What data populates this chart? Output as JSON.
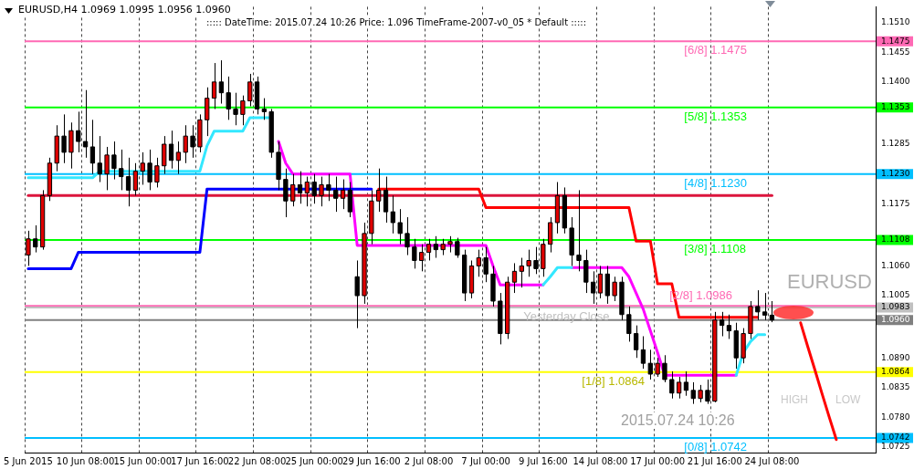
{
  "chart_data": {
    "type": "candlestick",
    "title": "EURUSD,H4  1.0969 1.0995 1.0956 1.0960",
    "subtitle": "::::: DateTime: 2015.07.24 10:26    Price: 1.096    TimeFrame-2007-v0_05    *  Default :::::",
    "categories": [
      "5 Jun 2015",
      null,
      null,
      null,
      null,
      null,
      null,
      null,
      "10 Jun 08:00",
      null,
      null,
      null,
      null,
      null,
      null,
      null,
      "15 Jun 00:00",
      null,
      null,
      null,
      null,
      null,
      null,
      null,
      "17 Jun 16:00",
      null,
      null,
      null,
      null,
      null,
      null,
      null,
      "22 Jun 08:00",
      null,
      null,
      null,
      null,
      null,
      null,
      null,
      "25 Jun 00:00",
      null,
      null,
      null,
      null,
      null,
      null,
      null,
      "29 Jun 16:00",
      null,
      null,
      null,
      null,
      null,
      null,
      null,
      "2 Jul 08:00",
      null,
      null,
      null,
      null,
      null,
      null,
      null,
      "7 Jul 00:00",
      null,
      null,
      null,
      null,
      null,
      null,
      null,
      "9 Jul 16:00",
      null,
      null,
      null,
      null,
      null,
      null,
      null,
      "14 Jul 08:00",
      null,
      null,
      null,
      null,
      null,
      null,
      null,
      "17 Jul 00:00",
      null,
      null,
      null,
      null,
      null,
      null,
      null,
      "21 Jul 16:00",
      null,
      null,
      null,
      null,
      null,
      null,
      null,
      "24 Jul 08:00",
      null,
      null,
      null,
      null,
      null,
      null,
      null,
      null,
      null,
      null,
      null,
      null,
      null,
      null
    ],
    "ohlc": [
      [
        1.108,
        1.1125,
        1.106,
        1.111
      ],
      [
        1.111,
        1.1135,
        1.1085,
        1.1095
      ],
      [
        1.1095,
        1.12,
        1.109,
        1.119
      ],
      [
        1.119,
        1.126,
        1.118,
        1.125
      ],
      [
        1.125,
        1.132,
        1.1235,
        1.13
      ],
      [
        1.13,
        1.134,
        1.125,
        1.127
      ],
      [
        1.127,
        1.1325,
        1.124,
        1.131
      ],
      [
        1.131,
        1.1345,
        1.127,
        1.129
      ],
      [
        1.129,
        1.1385,
        1.126,
        1.128
      ],
      [
        1.128,
        1.133,
        1.123,
        1.125
      ],
      [
        1.125,
        1.13,
        1.1215,
        1.123
      ],
      [
        1.123,
        1.128,
        1.12,
        1.1265
      ],
      [
        1.1265,
        1.129,
        1.122,
        1.124
      ],
      [
        1.124,
        1.1275,
        1.12,
        1.1225
      ],
      [
        1.1225,
        1.126,
        1.117,
        1.12
      ],
      [
        1.12,
        1.125,
        1.119,
        1.1235
      ],
      [
        1.1235,
        1.127,
        1.121,
        1.125
      ],
      [
        1.125,
        1.1275,
        1.12,
        1.1215
      ],
      [
        1.1215,
        1.126,
        1.1205,
        1.1245
      ],
      [
        1.1245,
        1.13,
        1.123,
        1.1285
      ],
      [
        1.1285,
        1.131,
        1.124,
        1.1255
      ],
      [
        1.1255,
        1.129,
        1.123,
        1.127
      ],
      [
        1.127,
        1.132,
        1.125,
        1.13
      ],
      [
        1.13,
        1.132,
        1.126,
        1.128
      ],
      [
        1.128,
        1.134,
        1.127,
        1.133
      ],
      [
        1.133,
        1.139,
        1.13,
        1.137
      ],
      [
        1.137,
        1.1435,
        1.135,
        1.14
      ],
      [
        1.14,
        1.144,
        1.136,
        1.138
      ],
      [
        1.138,
        1.141,
        1.133,
        1.135
      ],
      [
        1.135,
        1.138,
        1.132,
        1.134
      ],
      [
        1.134,
        1.1375,
        1.132,
        1.1365
      ],
      [
        1.1365,
        1.1415,
        1.1355,
        1.14
      ],
      [
        1.14,
        1.141,
        1.134,
        1.135
      ],
      [
        1.135,
        1.137,
        1.133,
        1.1345
      ],
      [
        1.1345,
        1.135,
        1.126,
        1.127
      ],
      [
        1.127,
        1.129,
        1.12,
        1.122
      ],
      [
        1.122,
        1.124,
        1.115,
        1.118
      ],
      [
        1.118,
        1.123,
        1.117,
        1.121
      ],
      [
        1.121,
        1.1235,
        1.1175,
        1.1195
      ],
      [
        1.1195,
        1.1225,
        1.117,
        1.1215
      ],
      [
        1.1215,
        1.123,
        1.1175,
        1.119
      ],
      [
        1.119,
        1.1225,
        1.117,
        1.121
      ],
      [
        1.121,
        1.123,
        1.118,
        1.12
      ],
      [
        1.12,
        1.1225,
        1.116,
        1.1185
      ],
      [
        1.1185,
        1.122,
        1.1165,
        1.12
      ],
      [
        1.12,
        1.1215,
        1.115,
        1.116
      ],
      [
        1.104,
        1.107,
        1.0945,
        1.1005
      ],
      [
        1.1005,
        1.114,
        1.099,
        1.112
      ],
      [
        1.112,
        1.12,
        1.11,
        1.118
      ],
      [
        1.118,
        1.124,
        1.116,
        1.12
      ],
      [
        1.12,
        1.1225,
        1.114,
        1.116
      ],
      [
        1.116,
        1.119,
        1.112,
        1.114
      ],
      [
        1.114,
        1.1165,
        1.11,
        1.112
      ],
      [
        1.112,
        1.115,
        1.108,
        1.1095
      ],
      [
        1.1095,
        1.111,
        1.1055,
        1.107
      ],
      [
        1.107,
        1.11,
        1.105,
        1.1085
      ],
      [
        1.1085,
        1.111,
        1.107,
        1.11
      ],
      [
        1.11,
        1.1115,
        1.1075,
        1.109
      ],
      [
        1.109,
        1.111,
        1.108,
        1.11
      ],
      [
        1.11,
        1.1115,
        1.1085,
        1.1105
      ],
      [
        1.1105,
        1.1112,
        1.1075,
        1.108
      ],
      [
        1.108,
        1.109,
        1.0995,
        1.101
      ],
      [
        1.101,
        1.107,
        1.1,
        1.106
      ],
      [
        1.106,
        1.109,
        1.104,
        1.1075
      ],
      [
        1.1075,
        1.1095,
        1.103,
        1.1045
      ],
      [
        1.1045,
        1.106,
        1.0985,
        1.0995
      ],
      [
        1.0995,
        1.101,
        1.0915,
        1.0935
      ],
      [
        1.0935,
        1.104,
        1.0925,
        1.103
      ],
      [
        1.103,
        1.1065,
        1.101,
        1.105
      ],
      [
        1.105,
        1.1075,
        1.102,
        1.106
      ],
      [
        1.106,
        1.109,
        1.104,
        1.107
      ],
      [
        1.107,
        1.1095,
        1.1045,
        1.1055
      ],
      [
        1.1055,
        1.111,
        1.104,
        1.11
      ],
      [
        1.11,
        1.115,
        1.1085,
        1.114
      ],
      [
        1.114,
        1.1215,
        1.112,
        1.119
      ],
      [
        1.119,
        1.1205,
        1.112,
        1.113
      ],
      [
        1.113,
        1.115,
        1.106,
        1.108
      ],
      [
        1.108,
        1.12,
        1.105,
        1.107
      ],
      [
        1.107,
        1.109,
        1.101,
        1.103
      ],
      [
        1.103,
        1.105,
        1.099,
        1.101
      ],
      [
        1.101,
        1.106,
        1.1,
        1.1045
      ],
      [
        1.1045,
        1.106,
        1.099,
        1.1005
      ],
      [
        1.1005,
        1.104,
        1.0995,
        1.103
      ],
      [
        1.103,
        1.104,
        1.096,
        1.097
      ],
      [
        1.097,
        1.0985,
        1.092,
        1.0935
      ],
      [
        1.0935,
        1.095,
        1.089,
        1.0905
      ],
      [
        1.0905,
        1.093,
        1.087,
        1.088
      ],
      [
        1.088,
        1.0905,
        1.085,
        1.086
      ],
      [
        1.086,
        1.089,
        1.0855,
        1.088
      ],
      [
        1.088,
        1.0895,
        1.0845,
        1.085
      ],
      [
        1.085,
        1.0865,
        1.0815,
        1.0825
      ],
      [
        1.0825,
        1.0855,
        1.0815,
        1.0845
      ],
      [
        1.0845,
        1.0865,
        1.082,
        1.083
      ],
      [
        1.083,
        1.0845,
        1.0805,
        1.0815
      ],
      [
        1.0815,
        1.084,
        1.0808,
        1.083
      ],
      [
        1.083,
        1.085,
        1.0805,
        1.081
      ],
      [
        1.081,
        1.0975,
        1.0808,
        1.096
      ],
      [
        1.096,
        1.0975,
        1.093,
        1.095
      ],
      [
        1.095,
        1.097,
        1.0925,
        1.094
      ],
      [
        1.094,
        1.0955,
        1.087,
        1.089
      ],
      [
        1.089,
        1.0945,
        1.088,
        1.0935
      ],
      [
        1.0935,
        1.0995,
        1.0925,
        1.0985
      ],
      [
        1.0985,
        1.1015,
        1.096,
        1.0975
      ],
      [
        1.0975,
        1.101,
        1.096,
        1.0969
      ],
      [
        1.0969,
        1.0995,
        1.0956,
        1.096
      ],
      null,
      null,
      null,
      null,
      null,
      null,
      null,
      null,
      null,
      null,
      null,
      null,
      null,
      null
    ],
    "series": [
      {
        "type": "line",
        "color": "#0000ff",
        "values": [
          1.1055,
          1.1055,
          1.1055,
          1.1055,
          1.1055,
          1.1055,
          1.1055,
          1.1085,
          1.1085,
          1.1085,
          1.1085,
          1.1085,
          1.1085,
          1.1085,
          1.1085,
          1.1085,
          1.1085,
          1.1085,
          1.1085,
          1.1085,
          1.1085,
          1.1085,
          1.1085,
          1.1085,
          1.1085,
          1.1202,
          1.1202,
          1.1202,
          1.1202,
          1.1202,
          1.1202,
          1.1202,
          1.1202,
          1.1202,
          1.1202,
          1.1202,
          1.1202,
          1.1202,
          1.1202,
          1.1202,
          1.1202,
          1.1202,
          1.1202,
          1.1202,
          1.1202,
          1.1202,
          1.1202,
          1.1202,
          1.1202,
          null,
          null,
          null,
          null,
          null,
          null,
          null,
          null,
          null,
          null,
          null,
          null,
          null,
          null,
          null,
          null,
          null,
          null,
          null,
          null,
          null,
          null,
          null,
          null,
          null,
          null,
          null,
          null,
          null,
          null,
          null,
          null,
          null,
          null,
          null,
          null,
          null,
          null,
          null,
          null,
          null,
          null,
          null,
          null,
          null,
          null,
          null,
          null,
          null,
          null,
          null,
          null,
          null,
          null,
          null,
          null,
          null,
          null,
          null,
          null,
          null,
          null,
          null,
          null,
          null,
          null,
          null,
          null,
          null,
          null
        ]
      },
      {
        "type": "line",
        "color": "#ff0000",
        "values": [
          null,
          null,
          null,
          null,
          null,
          null,
          null,
          null,
          null,
          null,
          null,
          null,
          null,
          null,
          null,
          null,
          null,
          null,
          null,
          null,
          null,
          null,
          null,
          null,
          null,
          null,
          null,
          null,
          null,
          null,
          null,
          null,
          null,
          null,
          null,
          null,
          null,
          null,
          null,
          null,
          null,
          null,
          null,
          null,
          null,
          null,
          null,
          null,
          null,
          1.1202,
          1.1202,
          1.1202,
          1.1202,
          1.1202,
          1.1202,
          1.1202,
          1.1202,
          1.1202,
          1.1202,
          1.1202,
          1.1202,
          1.1202,
          1.1202,
          1.1202,
          1.1168,
          1.1168,
          1.1168,
          1.1168,
          1.1168,
          1.1168,
          1.1168,
          1.1168,
          1.1168,
          1.1168,
          1.1168,
          1.1168,
          1.1168,
          1.1168,
          1.1168,
          1.1168,
          1.1168,
          1.1168,
          1.1168,
          1.1168,
          1.1168,
          1.1106,
          1.1106,
          1.1106,
          1.1027,
          1.1027,
          1.1027,
          1.0965,
          1.0965,
          1.0965,
          1.0965,
          1.0965,
          1.0965,
          1.0965,
          1.0965,
          1.0965,
          1.0965,
          1.0965,
          1.0965,
          null,
          null,
          null,
          null,
          null,
          null,
          null,
          null,
          null,
          null,
          null,
          null,
          null,
          null,
          null,
          null
        ]
      },
      {
        "type": "line",
        "color": "#dc143c",
        "values": [
          1.119,
          1.119,
          1.119,
          1.119,
          1.119,
          1.119,
          1.119,
          1.119,
          1.119,
          1.119,
          1.119,
          1.119,
          1.119,
          1.119,
          1.119,
          1.119,
          1.119,
          1.119,
          1.119,
          1.119,
          1.119,
          1.119,
          1.119,
          1.119,
          1.119,
          1.119,
          1.119,
          1.119,
          1.119,
          1.119,
          1.119,
          1.119,
          1.119,
          1.119,
          1.119,
          1.119,
          1.119,
          1.119,
          1.119,
          1.119,
          1.119,
          1.119,
          1.119,
          1.119,
          1.119,
          1.119,
          1.119,
          1.119,
          1.119,
          1.119,
          1.119,
          1.119,
          1.119,
          1.119,
          1.119,
          1.119,
          1.119,
          1.119,
          1.119,
          1.119,
          1.119,
          1.119,
          1.119,
          1.119,
          1.119,
          1.119,
          1.119,
          1.119,
          1.119,
          1.119,
          1.119,
          1.119,
          1.119,
          1.119,
          1.119,
          1.119,
          1.119,
          1.119,
          1.119,
          1.119,
          1.119,
          1.119,
          1.119,
          1.119,
          1.119,
          1.119,
          1.119,
          1.119,
          1.119,
          1.119,
          1.119,
          1.119,
          1.119,
          1.119,
          1.119,
          1.119,
          1.119,
          1.119,
          1.119,
          1.119,
          1.119,
          1.119,
          1.119,
          1.119,
          1.119,
          null,
          null,
          null,
          null,
          null,
          null,
          null,
          null,
          null,
          null,
          null,
          null,
          null,
          null
        ]
      },
      {
        "type": "line",
        "color": "#33e8ff",
        "values": [
          1.1223,
          1.1223,
          1.1223,
          1.1223,
          1.1223,
          1.1223,
          1.1223,
          1.1223,
          1.1223,
          1.1223,
          1.1235,
          1.1235,
          1.1235,
          1.1235,
          1.1235,
          1.1235,
          1.1235,
          1.1235,
          1.1235,
          1.1235,
          1.1235,
          1.1235,
          1.1235,
          1.1235,
          1.1235,
          1.1282,
          1.1309,
          1.1309,
          1.1309,
          1.1309,
          1.1309,
          1.1334,
          1.1334,
          1.1334,
          1.1334,
          null,
          null,
          null,
          null,
          null,
          null,
          null,
          null,
          null,
          null,
          null,
          null,
          null,
          null,
          null,
          null,
          null,
          null,
          null,
          null,
          null,
          null,
          null,
          null,
          null,
          null,
          null,
          null,
          null,
          null,
          null,
          null,
          null,
          null,
          null,
          null,
          null,
          1.1025,
          1.104,
          1.1057,
          1.1057,
          1.1057,
          null,
          null,
          null,
          null,
          null,
          null,
          null,
          null,
          null,
          null,
          null,
          null,
          null,
          null,
          null,
          null,
          null,
          null,
          null,
          null,
          null,
          null,
          1.0858,
          1.09,
          1.092,
          1.0933,
          1.0933,
          null,
          null,
          null,
          null,
          null,
          null,
          null,
          null,
          null,
          null,
          null,
          null,
          null,
          null,
          null
        ]
      },
      {
        "type": "line",
        "color": "#ff00ff",
        "values": [
          null,
          null,
          null,
          null,
          null,
          null,
          null,
          null,
          null,
          null,
          null,
          null,
          null,
          null,
          null,
          null,
          null,
          null,
          null,
          null,
          null,
          null,
          null,
          null,
          null,
          null,
          null,
          null,
          null,
          null,
          null,
          null,
          null,
          null,
          null,
          1.129,
          1.125,
          1.123,
          1.123,
          1.123,
          1.123,
          1.123,
          1.123,
          1.123,
          1.123,
          1.123,
          1.1098,
          1.1098,
          1.1098,
          1.1098,
          1.1098,
          1.1098,
          1.1098,
          1.1098,
          1.1098,
          1.1098,
          1.1098,
          1.1098,
          1.1098,
          1.1098,
          1.1098,
          1.1098,
          1.1098,
          1.1098,
          1.1098,
          1.106,
          1.1025,
          1.1025,
          1.1025,
          1.1025,
          1.1025,
          1.1025,
          1.1025,
          null,
          null,
          null,
          1.1057,
          1.1057,
          1.1057,
          1.1057,
          1.1057,
          1.1057,
          1.1057,
          1.1057,
          1.104,
          1.101,
          1.098,
          1.094,
          1.09,
          1.0858,
          1.0858,
          1.0858,
          1.0858,
          1.0858,
          1.0858,
          1.0858,
          1.0858,
          1.0858,
          1.0858,
          1.0858,
          null,
          null,
          null,
          null,
          null,
          null,
          null,
          null,
          null,
          null,
          null,
          null,
          null,
          null,
          null,
          null,
          null,
          null,
          null
        ]
      },
      {
        "type": "line",
        "color": "#ff0000",
        "values": [
          null,
          null,
          null,
          null,
          null,
          null,
          null,
          null,
          null,
          null,
          null,
          null,
          null,
          null,
          null,
          null,
          null,
          null,
          null,
          null,
          null,
          null,
          null,
          null,
          null,
          null,
          null,
          null,
          null,
          null,
          null,
          null,
          null,
          null,
          null,
          null,
          null,
          null,
          null,
          null,
          null,
          null,
          null,
          null,
          null,
          null,
          null,
          null,
          null,
          null,
          null,
          null,
          null,
          null,
          null,
          null,
          null,
          null,
          null,
          null,
          null,
          null,
          null,
          null,
          null,
          null,
          null,
          null,
          null,
          null,
          null,
          null,
          null,
          null,
          null,
          null,
          null,
          null,
          null,
          null,
          null,
          null,
          null,
          null,
          null,
          null,
          null,
          null,
          null,
          null,
          null,
          null,
          null,
          null,
          null,
          null,
          null,
          null,
          null,
          null,
          null,
          null,
          null,
          null,
          null,
          null,
          null,
          null,
          1.0955,
          1.0911,
          1.0868,
          1.0824,
          1.0781,
          1.0739,
          null,
          null,
          null,
          null,
          null
        ]
      }
    ],
    "ylim": [
      1.0715,
      1.1539
    ],
    "yticks": [
      1.0725,
      1.0742,
      {
        "value": 1.078,
        "label": "1.0780"
      },
      1.0835,
      1.0864,
      {
        "value": 1.089,
        "label": "1.0890"
      },
      {
        "value": 1.096,
        "label": "1.0960"
      },
      1.0983,
      1.1005,
      {
        "value": 1.106,
        "label": "1.1060"
      },
      1.1108,
      1.1175,
      {
        "value": 1.123,
        "label": "1.1230"
      },
      1.1285,
      1.1353,
      {
        "value": 1.14,
        "label": "1.1400"
      },
      1.1455,
      1.1475,
      {
        "value": 1.151,
        "label": "1.1510"
      }
    ],
    "grid": "x",
    "ref_lines": [
      {
        "axis": "y",
        "value": 1.1475,
        "label": "[6/8] 1.1475",
        "color": "#ff69b4"
      },
      {
        "axis": "y",
        "value": 1.1353,
        "label": "[5/8] 1.1353",
        "color": "#00ff00"
      },
      {
        "axis": "y",
        "value": 1.123,
        "label": "[4/8] 1.1230",
        "color": "#00bfff"
      },
      {
        "axis": "y",
        "value": 1.1108,
        "label": "[3/8] 1.1108",
        "color": "#00ff00"
      },
      {
        "axis": "y",
        "value": 1.0986,
        "label": "[2/8] 1.0986",
        "color": "#ff69b4"
      },
      {
        "axis": "y",
        "value": 1.0983,
        "label": "Yesterday Close",
        "color": "#c0c0c0"
      },
      {
        "axis": "y",
        "value": 1.096,
        "color": "#808080"
      },
      {
        "axis": "y",
        "value": 1.0864,
        "label": "[1/8] 1.0864",
        "color": "#ffff00"
      },
      {
        "axis": "y",
        "value": 1.0742,
        "label": "[0/8] 1.0742",
        "color": "#00bfff"
      }
    ],
    "annotations": [
      "EURUSD",
      "HIGH",
      "LOW",
      "2015.07.24 10:26"
    ]
  }
}
